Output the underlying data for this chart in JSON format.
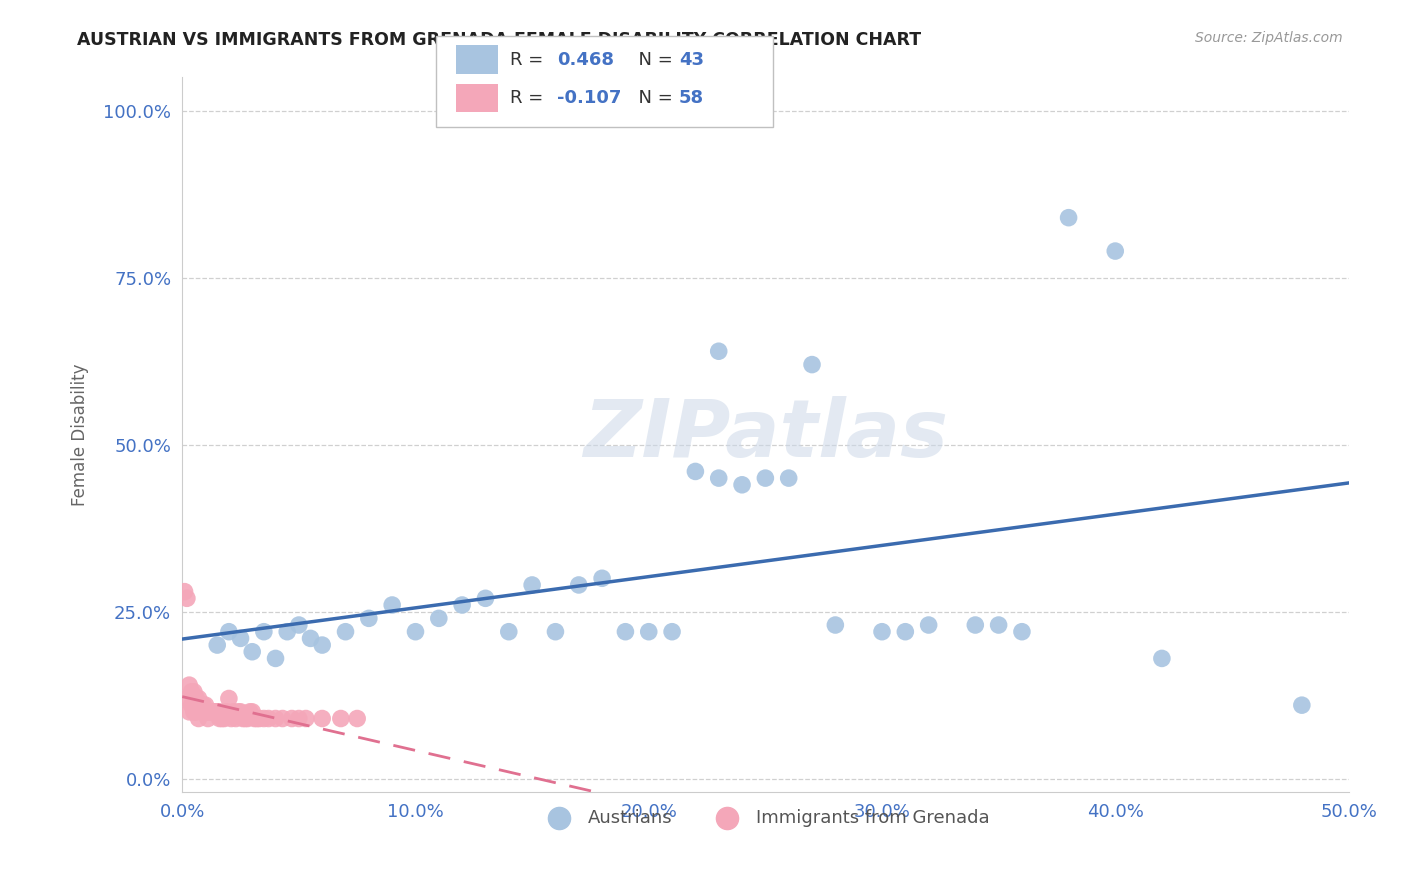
{
  "title": "AUSTRIAN VS IMMIGRANTS FROM GRENADA FEMALE DISABILITY CORRELATION CHART",
  "source": "Source: ZipAtlas.com",
  "ylabel": "Female Disability",
  "xlim": [
    0.0,
    0.5
  ],
  "ylim": [
    -0.02,
    1.05
  ],
  "ytick_labels": [
    "0.0%",
    "25.0%",
    "50.0%",
    "75.0%",
    "100.0%"
  ],
  "ytick_values": [
    0.0,
    0.25,
    0.5,
    0.75,
    1.0
  ],
  "xtick_labels": [
    "0.0%",
    "10.0%",
    "20.0%",
    "30.0%",
    "40.0%",
    "50.0%"
  ],
  "xtick_values": [
    0.0,
    0.1,
    0.2,
    0.3,
    0.4,
    0.5
  ],
  "legend_labels": [
    "Austrians",
    "Immigrants from Grenada"
  ],
  "austrians_color": "#a8c4e0",
  "grenada_color": "#f4a7b9",
  "line_blue": "#3b6baf",
  "line_pink": "#e07090",
  "R_austrians": "0.468",
  "N_austrians": "43",
  "R_grenada": "-0.107",
  "N_grenada": "58",
  "watermark": "ZIPatlas",
  "austrians_x": [
    0.015,
    0.02,
    0.025,
    0.03,
    0.035,
    0.04,
    0.045,
    0.05,
    0.055,
    0.06,
    0.07,
    0.08,
    0.09,
    0.1,
    0.11,
    0.12,
    0.13,
    0.14,
    0.15,
    0.16,
    0.17,
    0.18,
    0.19,
    0.2,
    0.21,
    0.22,
    0.23,
    0.24,
    0.25,
    0.26,
    0.28,
    0.3,
    0.32,
    0.34,
    0.36,
    0.38,
    0.4,
    0.23,
    0.27,
    0.31,
    0.35,
    0.42,
    0.48
  ],
  "austrians_y": [
    0.2,
    0.22,
    0.21,
    0.19,
    0.22,
    0.18,
    0.22,
    0.23,
    0.21,
    0.2,
    0.22,
    0.24,
    0.26,
    0.22,
    0.24,
    0.26,
    0.27,
    0.22,
    0.29,
    0.22,
    0.29,
    0.3,
    0.22,
    0.22,
    0.22,
    0.46,
    0.45,
    0.44,
    0.45,
    0.45,
    0.23,
    0.22,
    0.23,
    0.23,
    0.22,
    0.84,
    0.79,
    0.64,
    0.62,
    0.22,
    0.23,
    0.18,
    0.11
  ],
  "grenada_x": [
    0.002,
    0.003,
    0.004,
    0.005,
    0.006,
    0.007,
    0.008,
    0.009,
    0.01,
    0.011,
    0.012,
    0.013,
    0.014,
    0.015,
    0.016,
    0.017,
    0.018,
    0.019,
    0.02,
    0.021,
    0.022,
    0.023,
    0.024,
    0.025,
    0.026,
    0.027,
    0.028,
    0.029,
    0.03,
    0.031,
    0.032,
    0.033,
    0.035,
    0.037,
    0.04,
    0.043,
    0.047,
    0.05,
    0.053,
    0.06,
    0.068,
    0.075,
    0.001,
    0.002,
    0.003,
    0.004,
    0.005,
    0.006,
    0.007,
    0.008,
    0.009,
    0.01,
    0.011,
    0.012,
    0.013,
    0.014,
    0.015,
    0.016
  ],
  "grenada_y": [
    0.12,
    0.1,
    0.11,
    0.1,
    0.1,
    0.09,
    0.11,
    0.1,
    0.1,
    0.09,
    0.1,
    0.1,
    0.1,
    0.1,
    0.1,
    0.09,
    0.09,
    0.1,
    0.12,
    0.09,
    0.1,
    0.09,
    0.1,
    0.1,
    0.09,
    0.09,
    0.09,
    0.1,
    0.1,
    0.09,
    0.09,
    0.09,
    0.09,
    0.09,
    0.09,
    0.09,
    0.09,
    0.09,
    0.09,
    0.09,
    0.09,
    0.09,
    0.28,
    0.27,
    0.14,
    0.13,
    0.13,
    0.12,
    0.12,
    0.11,
    0.11,
    0.11,
    0.1,
    0.1,
    0.1,
    0.1,
    0.1,
    0.09
  ],
  "background_color": "#ffffff",
  "grid_color": "#d0d0d0"
}
